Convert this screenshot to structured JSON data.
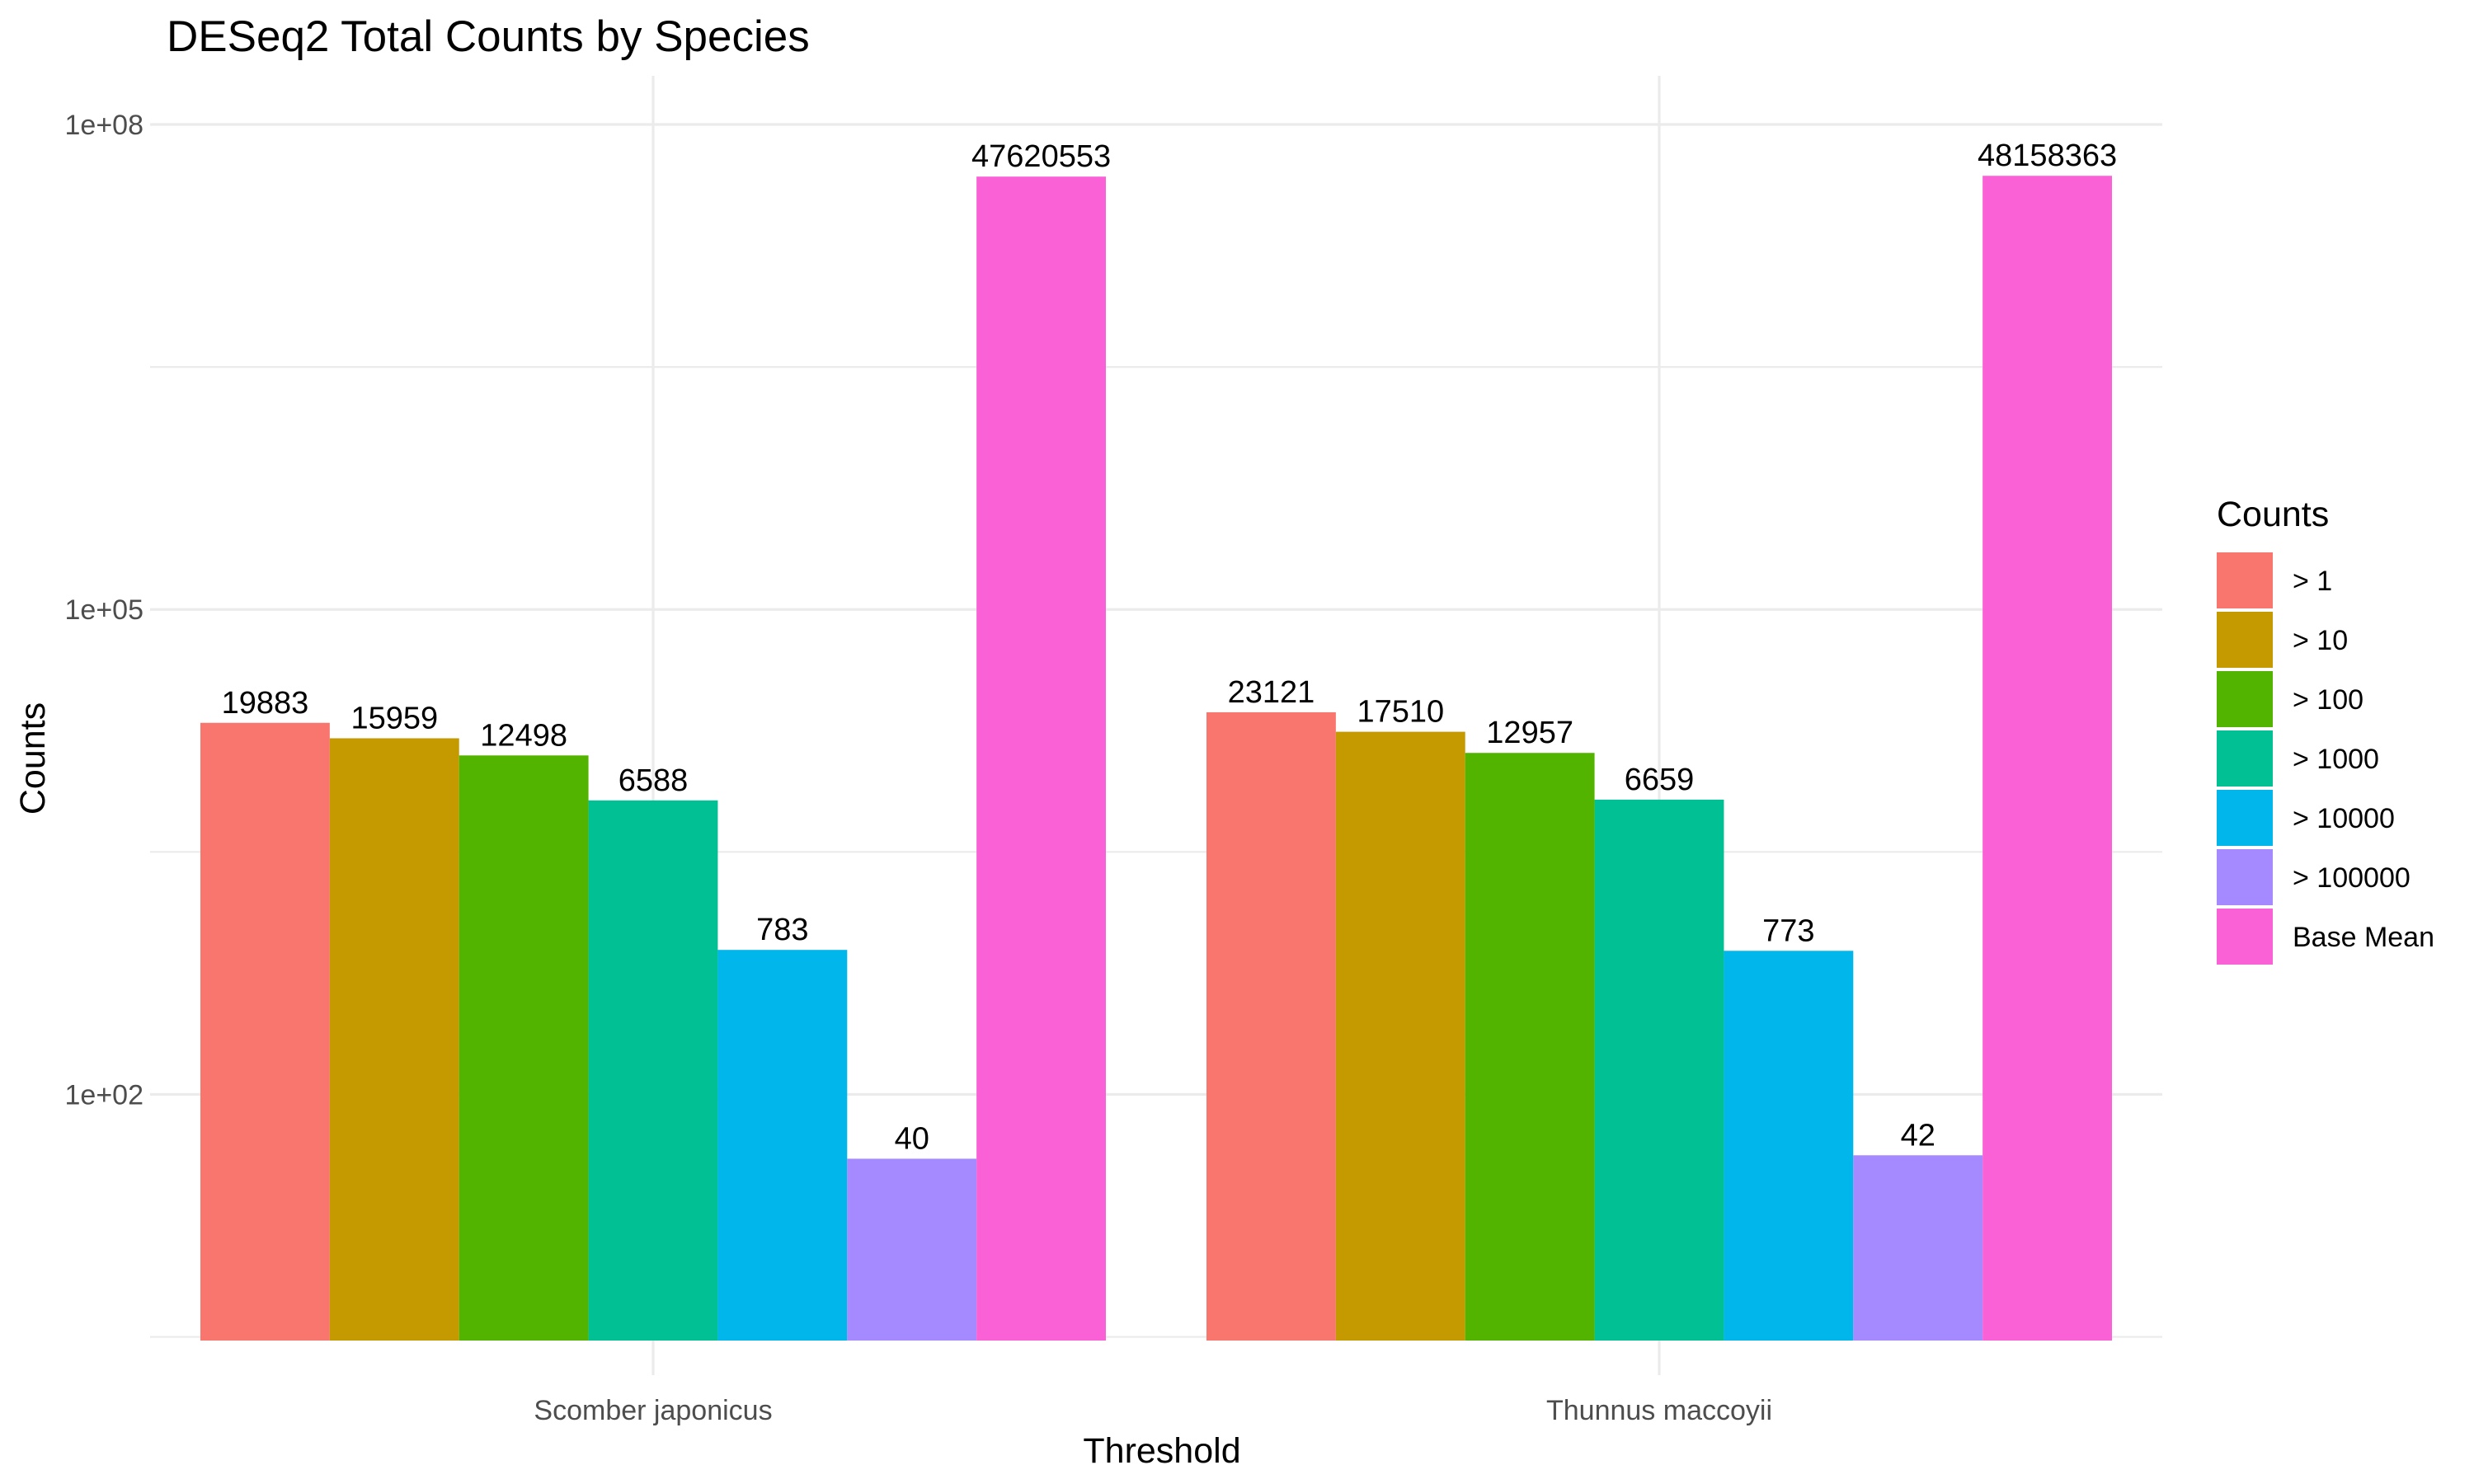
{
  "chart_data": {
    "type": "bar",
    "title": "DESeq2 Total Counts by Species",
    "xlabel": "Threshold",
    "ylabel": "Counts",
    "y_scale": "log10",
    "ylim": [
      3,
      200000000
    ],
    "y_ticks": [
      {
        "value": 100,
        "label": "1e+02"
      },
      {
        "value": 100000,
        "label": "1e+05"
      },
      {
        "value": 100000000,
        "label": "1e+08"
      }
    ],
    "y_minor_ticks": [
      3.16,
      3162,
      3162278
    ],
    "grid": true,
    "legend": {
      "title": "Counts",
      "position": "right"
    },
    "categories": [
      "Scomber japonicus",
      "Thunnus maccoyii"
    ],
    "series": [
      {
        "name": "> 1",
        "color": "#F8766D",
        "values": [
          19883,
          23121
        ]
      },
      {
        "name": "> 10",
        "color": "#C49A00",
        "values": [
          15959,
          17510
        ]
      },
      {
        "name": "> 100",
        "color": "#53B400",
        "values": [
          12498,
          12957
        ]
      },
      {
        "name": "> 1000",
        "color": "#00C094",
        "values": [
          6588,
          6659
        ]
      },
      {
        "name": "> 10000",
        "color": "#00B6EB",
        "values": [
          783,
          773
        ]
      },
      {
        "name": "> 100000",
        "color": "#A58AFF",
        "values": [
          40,
          42
        ]
      },
      {
        "name": "Base Mean",
        "color": "#FB61D7",
        "values": [
          47620553,
          48158363
        ]
      }
    ]
  }
}
